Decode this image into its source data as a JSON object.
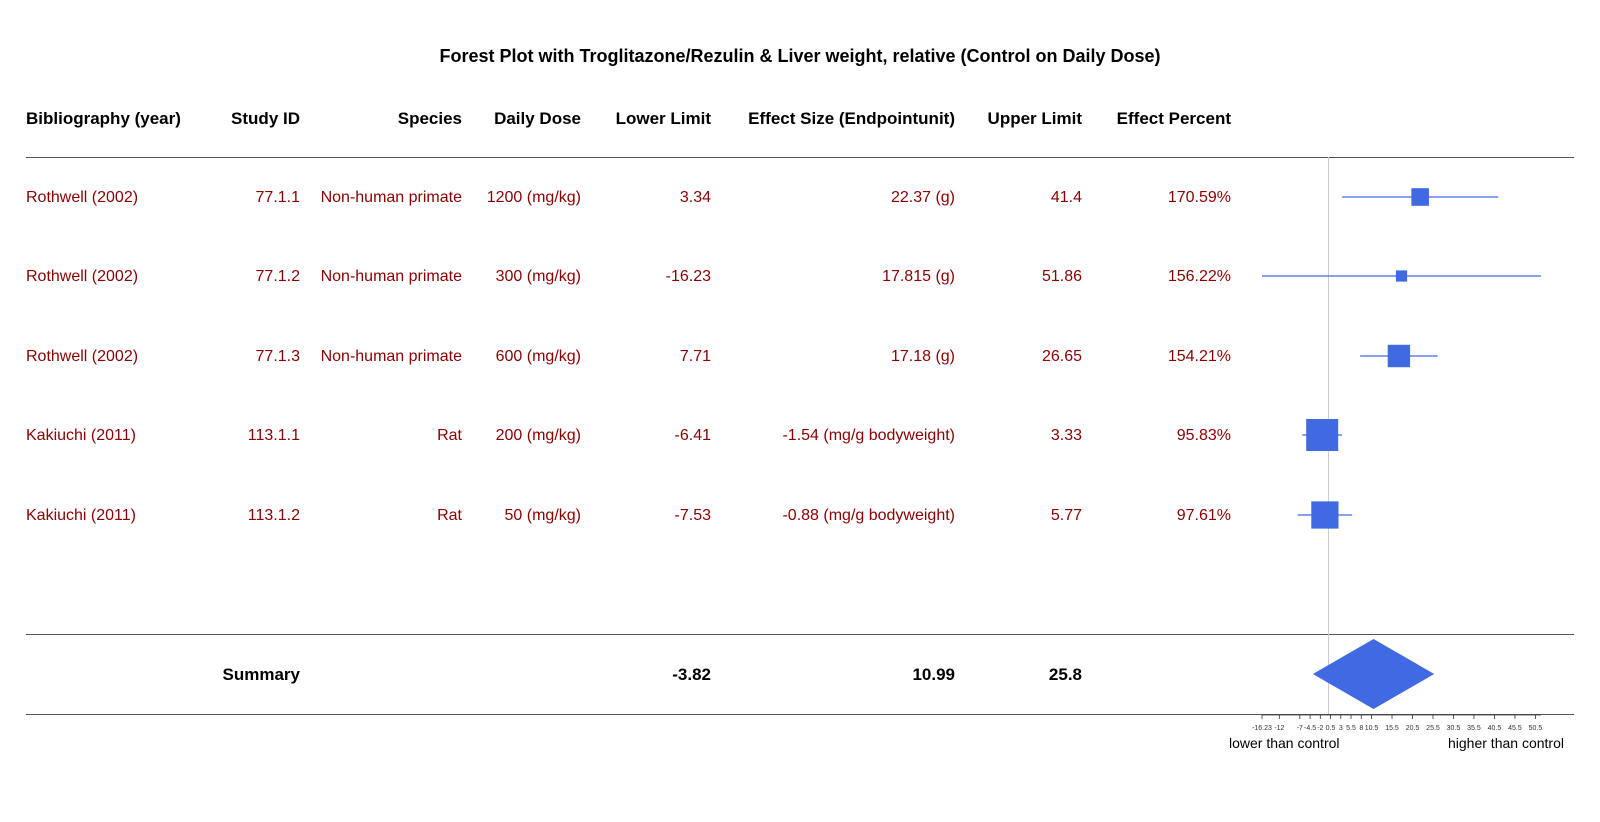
{
  "chart_data": {
    "type": "forest",
    "title": "Forest Plot with Troglitazone/Rezulin & Liver weight, relative (Control on Daily Dose)",
    "columns": [
      "Bibliography (year)",
      "Study ID",
      "Species",
      "Daily Dose",
      "Lower Limit",
      "Effect Size (Endpointunit)",
      "Upper Limit",
      "Effect Percent"
    ],
    "rows": [
      {
        "bibliography": "Rothwell (2002)",
        "study_id": "77.1.1",
        "species": "Non-human primate",
        "dose": "1200 (mg/kg)",
        "lower": "3.34",
        "effect": "22.37 (g)",
        "upper": "41.4",
        "percent": "170.59%",
        "lower_value": 3.34,
        "effect_value": 22.37,
        "upper_value": 41.4,
        "weight": 0.55
      },
      {
        "bibliography": "Rothwell (2002)",
        "study_id": "77.1.2",
        "species": "Non-human primate",
        "dose": "300 (mg/kg)",
        "lower": "-16.23",
        "effect": "17.815 (g)",
        "upper": "51.86",
        "percent": "156.22%",
        "lower_value": -16.23,
        "effect_value": 17.815,
        "upper_value": 51.86,
        "weight": 0.35
      },
      {
        "bibliography": "Rothwell (2002)",
        "study_id": "77.1.3",
        "species": "Non-human primate",
        "dose": "600 (mg/kg)",
        "lower": "7.71",
        "effect": "17.18 (g)",
        "upper": "26.65",
        "percent": "154.21%",
        "lower_value": 7.71,
        "effect_value": 17.18,
        "upper_value": 26.65,
        "weight": 0.7
      },
      {
        "bibliography": "Kakiuchi (2011)",
        "study_id": "113.1.1",
        "species": "Rat",
        "dose": "200 (mg/kg)",
        "lower": "-6.41",
        "effect": "-1.54 (mg/g bodyweight)",
        "upper": "3.33",
        "percent": "95.83%",
        "lower_value": -6.41,
        "effect_value": -1.54,
        "upper_value": 3.33,
        "weight": 1.0
      },
      {
        "bibliography": "Kakiuchi (2011)",
        "study_id": "113.1.2",
        "species": "Rat",
        "dose": "50 (mg/kg)",
        "lower": "-7.53",
        "effect": "-0.88 (mg/g bodyweight)",
        "upper": "5.77",
        "percent": "97.61%",
        "lower_value": -7.53,
        "effect_value": -0.88,
        "upper_value": 5.77,
        "weight": 0.85
      }
    ],
    "summary": {
      "label": "Summary",
      "lower": "-3.82",
      "effect": "10.99",
      "upper": "25.8",
      "lower_value": -3.82,
      "effect_value": 10.99,
      "upper_value": 25.8
    },
    "x_ticks": [
      "-16.23",
      "-12",
      "-7",
      "-4.5",
      "-2",
      "0.5",
      "3",
      "5.5",
      "8",
      "10.5",
      "15.5",
      "20.5",
      "25.5",
      "30.5",
      "35.5",
      "40.5",
      "45.5",
      "50.5"
    ],
    "xlim": [
      -16.23,
      51.86
    ],
    "reference_line": 0,
    "x_direction_labels": {
      "left": "lower than control",
      "right": "higher than control"
    },
    "colors": {
      "marker": "#4169e1",
      "row_text": "#8b0000",
      "ref_line": "#cccccc"
    }
  }
}
